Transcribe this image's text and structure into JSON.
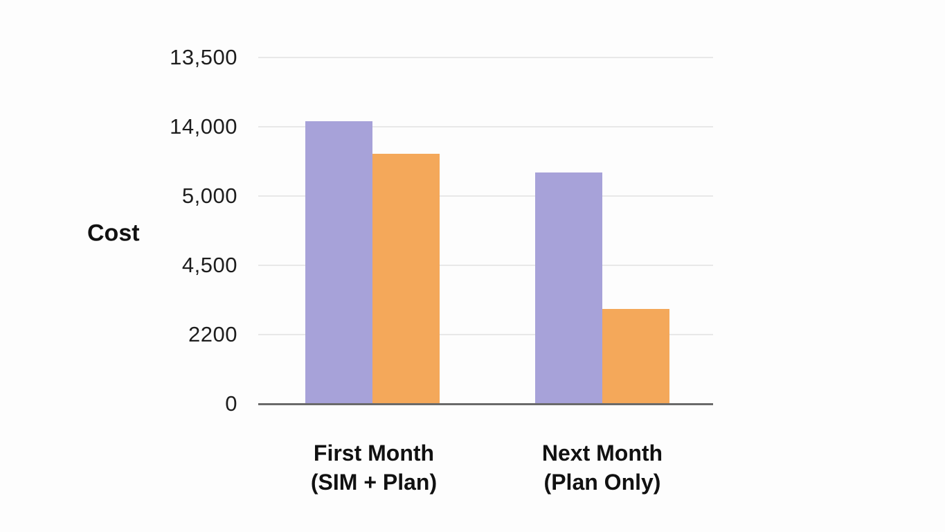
{
  "chart_data": {
    "type": "bar",
    "title": "",
    "xlabel": "",
    "ylabel": "Cost",
    "categories": [
      {
        "line1": "First Month",
        "line2": "(SIM + Plan)"
      },
      {
        "line1": "Next Month",
        "line2": "(Plan Only)"
      }
    ],
    "y_tick_labels": [
      "0",
      "2200",
      "4,500",
      "5,000",
      "14,000",
      "13,500"
    ],
    "grid": "horizontal-only",
    "legend": "none",
    "series": [
      {
        "name": "purple-series",
        "color": "#a7a2d9",
        "heights_in_gridline_units": [
          4.08,
          3.34
        ],
        "values_est_from_axis": [
          13950,
          8050
        ]
      },
      {
        "name": "orange-series",
        "color": "#f4a85a",
        "heights_in_gridline_units": [
          3.61,
          1.37
        ],
        "values_est_from_axis": [
          10500,
          3050
        ]
      }
    ],
    "colors": {
      "axis_line": "#6a6a6a",
      "gridline": "#e8e8e8",
      "tick_text": "#1d1d1d",
      "label_text": "#111111",
      "background": "#fdfdfd"
    }
  }
}
